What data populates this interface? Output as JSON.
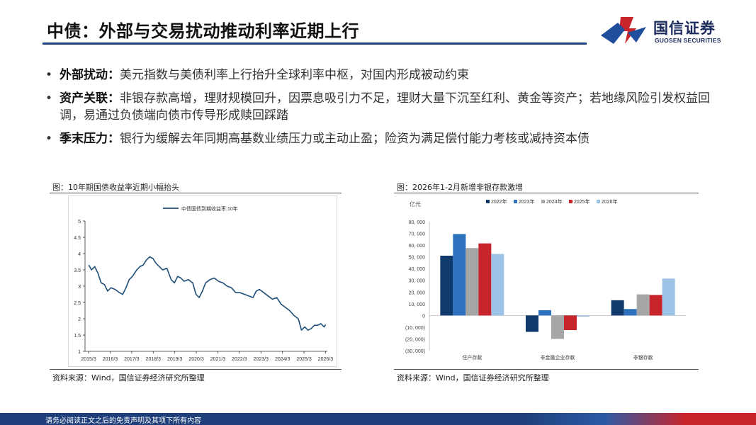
{
  "header": {
    "title": "中债：外部与交易扰动推动利率近期上行",
    "logo_cn": "国信证券",
    "logo_en": "GUOSEN SECURITIES",
    "logo_colors": [
      "#c8242b",
      "#1f4f9c"
    ]
  },
  "bullets": [
    {
      "head": "外部扰动：",
      "text": "美元指数与美债利率上行抬升全球利率中枢，对国内形成被动约束"
    },
    {
      "head": "资产关联：",
      "text": "非银存款高增，理财规模回升，因票息吸引力不足，理财大量下沉至红利、黄金等资产；若地缘风险引发权益回调，易通过负债端向债市传导形成赎回踩踏"
    },
    {
      "head": "季末压力：",
      "text": "银行为缓解去年同期高基数业绩压力或主动止盈；险资为满足偿付能力考核或减持资本债"
    }
  ],
  "figures": {
    "left_caption": "图：10年期国债收益率近期小幅抬头",
    "right_caption": "图：2026年1-2月新增非银存款激增",
    "left_source": "资料来源：Wind，国信证券经济研究所整理",
    "right_source": "资料来源：Wind，国信证券经济研究所整理"
  },
  "footer": {
    "disclaimer": "请务必阅读正文之后的免责声明及其项下所有内容"
  },
  "chart_data": [
    {
      "type": "line",
      "title": "",
      "legend": [
        "中债国债到期收益率:10年"
      ],
      "legend_position": "top-center",
      "ylim": [
        1,
        5
      ],
      "yticks": [
        "1",
        "1.5",
        "2",
        "2.5",
        "3",
        "3.5",
        "4",
        "4.5",
        "5"
      ],
      "xticks": [
        "2015/3",
        "2016/3",
        "2017/3",
        "2018/3",
        "2019/3",
        "2020/3",
        "2021/3",
        "2022/3",
        "2023/3",
        "2024/3",
        "2025/3",
        "2026/3"
      ],
      "line_color": "#1f4e79",
      "grid": false,
      "series": [
        {
          "name": "中债国债到期收益率:10年",
          "x": [
            2015.17,
            2015.3,
            2015.45,
            2015.6,
            2015.75,
            2015.9,
            2016.05,
            2016.2,
            2016.4,
            2016.6,
            2016.75,
            2016.9,
            2017.05,
            2017.2,
            2017.4,
            2017.55,
            2017.7,
            2017.85,
            2018.0,
            2018.15,
            2018.3,
            2018.45,
            2018.6,
            2018.8,
            2019.0,
            2019.15,
            2019.3,
            2019.45,
            2019.6,
            2019.8,
            2020.0,
            2020.15,
            2020.3,
            2020.45,
            2020.6,
            2020.8,
            2021.0,
            2021.2,
            2021.4,
            2021.6,
            2021.8,
            2022.0,
            2022.2,
            2022.4,
            2022.6,
            2022.8,
            2022.95,
            2023.1,
            2023.3,
            2023.5,
            2023.7,
            2023.9,
            2024.1,
            2024.3,
            2024.5,
            2024.7,
            2024.9,
            2025.05,
            2025.2,
            2025.35,
            2025.5,
            2025.65,
            2025.8,
            2025.95,
            2026.1,
            2026.17
          ],
          "values": [
            3.65,
            3.5,
            3.6,
            3.4,
            3.1,
            3.05,
            2.85,
            2.95,
            2.9,
            2.8,
            2.75,
            2.95,
            3.2,
            3.3,
            3.5,
            3.6,
            3.65,
            3.8,
            3.9,
            3.85,
            3.7,
            3.6,
            3.5,
            3.55,
            3.2,
            3.1,
            3.3,
            3.25,
            3.15,
            3.2,
            3.1,
            2.75,
            2.65,
            2.85,
            3.1,
            3.2,
            3.25,
            3.15,
            3.1,
            3.0,
            2.95,
            2.8,
            2.8,
            2.75,
            2.7,
            2.65,
            2.85,
            2.9,
            2.8,
            2.7,
            2.6,
            2.65,
            2.45,
            2.35,
            2.25,
            2.1,
            2.0,
            1.65,
            1.75,
            1.65,
            1.7,
            1.8,
            1.8,
            1.85,
            1.75,
            1.82
          ]
        }
      ]
    },
    {
      "type": "bar",
      "title": "",
      "ylabel": "亿元",
      "ylim": [
        -30000,
        80000
      ],
      "yticks": [
        "80, 000",
        "70, 000",
        "60, 000",
        "50, 000",
        "40, 000",
        "30, 000",
        "20, 000",
        "10, 000",
        "0",
        "(10, 000)",
        "(20, 000)",
        "(30, 000)"
      ],
      "legend_position": "top-center",
      "grid": false,
      "categories": [
        "住户存款",
        "非金融企业存款",
        "非银存款"
      ],
      "series": [
        {
          "name": "2022年",
          "color": "#0f3a6b",
          "values": [
            51000,
            -14000,
            13000
          ]
        },
        {
          "name": "2023年",
          "color": "#2e72bd",
          "values": [
            69500,
            4500,
            5500
          ]
        },
        {
          "name": "2024年",
          "color": "#a6a6a6",
          "values": [
            57500,
            -20000,
            18000
          ]
        },
        {
          "name": "2025年",
          "color": "#c8242b",
          "values": [
            61500,
            -12500,
            17500
          ]
        },
        {
          "name": "2026年",
          "color": "#9dc3e6",
          "values": [
            52500,
            -1000,
            31500
          ]
        }
      ]
    }
  ]
}
